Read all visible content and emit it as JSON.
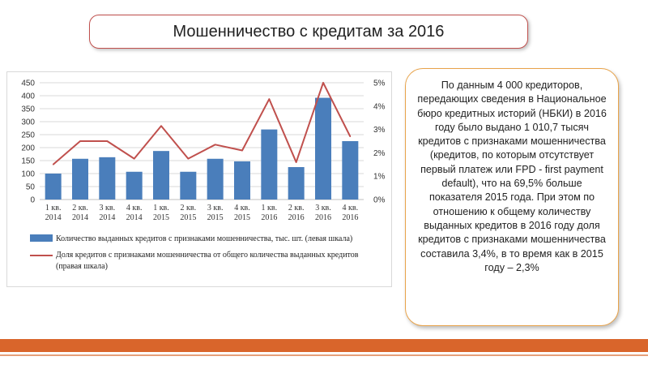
{
  "title": "Мошенничество с кредитам за 2016",
  "info_text": "По данным 4 000 кредиторов, передающих сведения в Национальное бюро кредитных историй (НБКИ) в 2016 году было выдано 1 010,7 тысяч кредитов с признаками мошенничества (кредитов, по которым отсутствует первый платеж или FPD - first payment default), что на 69,5% больше показателя 2015 года. При этом по отношению к общему количеству выданных кредитов в 2016 году доля кредитов с признаками мошенничества составила 3,4%, в то время как в 2015 году – 2,3%",
  "chart_data": {
    "type": "bar+line",
    "categories": [
      [
        "1 кв.",
        "2014"
      ],
      [
        "2 кв.",
        "2014"
      ],
      [
        "3 кв.",
        "2014"
      ],
      [
        "4 кв.",
        "2014"
      ],
      [
        "1 кв.",
        "2015"
      ],
      [
        "2 кв.",
        "2015"
      ],
      [
        "3 кв.",
        "2015"
      ],
      [
        "4 кв.",
        "2015"
      ],
      [
        "1 кв.",
        "2016"
      ],
      [
        "2 кв.",
        "2016"
      ],
      [
        "3 кв.",
        "2016"
      ],
      [
        "4 кв.",
        "2016"
      ]
    ],
    "series": [
      {
        "name": "Количество выданных кредитов с признаками мошенничества, тыс. шт. (левая шкала)",
        "type": "bar",
        "axis": "left",
        "color": "#4a7ebb",
        "values": [
          100,
          157,
          163,
          107,
          187,
          107,
          157,
          147,
          270,
          125,
          392,
          225
        ]
      },
      {
        "name": "Доля кредитов с признаками мошенничества от общего количества выданных кредитов (правая шкала)",
        "type": "line",
        "axis": "right",
        "color": "#c0504d",
        "values": [
          1.5,
          2.5,
          2.5,
          1.75,
          3.15,
          1.75,
          2.35,
          2.1,
          4.3,
          1.6,
          5.0,
          2.7
        ]
      }
    ],
    "left_axis": {
      "min": 0,
      "max": 450,
      "ticks": [
        "0",
        "50",
        "100",
        "150",
        "200",
        "250",
        "300",
        "350",
        "400",
        "450"
      ]
    },
    "right_axis": {
      "min": 0,
      "max": 5,
      "ticks": [
        "0%",
        "1%",
        "2%",
        "3%",
        "4%",
        "5%"
      ]
    },
    "grid": true,
    "legend": "bottom"
  },
  "colors": {
    "title_border": "#c0504d",
    "text_box_border": "#e8a34a",
    "footer": "#d9652b"
  }
}
